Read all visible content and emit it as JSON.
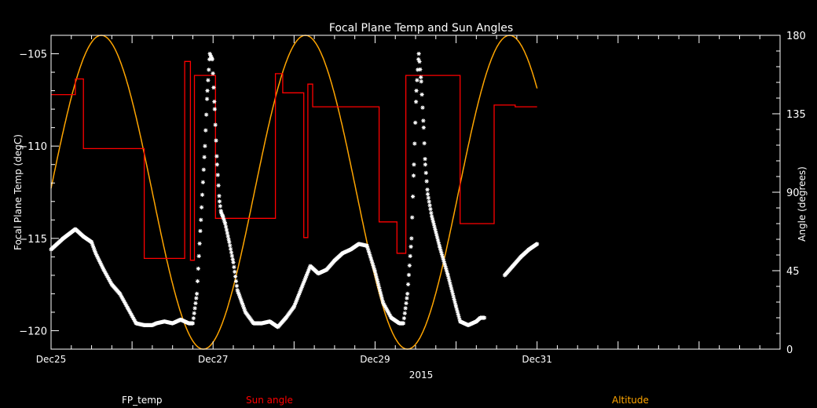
{
  "chart_data": {
    "type": "line",
    "title": "Focal Plane Temp and Sun Angles",
    "xlabel": "2015",
    "ylabel_left": "Focal Plane Temp (degC)",
    "ylabel_right": "Angle (degrees)",
    "x_unit": "days since Dec25 00:00",
    "xlim": [
      0,
      9
    ],
    "ylim_left": [
      -121,
      -104
    ],
    "ylim_right": [
      0,
      180
    ],
    "x_ticks": [
      {
        "value": 0,
        "label": "Dec25"
      },
      {
        "value": 2,
        "label": "Dec27"
      },
      {
        "value": 4,
        "label": "Dec29"
      },
      {
        "value": 6,
        "label": "Dec31"
      }
    ],
    "y_ticks_left": [
      -120,
      -115,
      -110,
      -105
    ],
    "y_tick_labels_left": [
      "−120",
      "−115",
      "−110",
      "−105"
    ],
    "y_ticks_right": [
      0,
      45,
      90,
      135,
      180
    ],
    "legend": [
      {
        "name": "FP_temp",
        "color": "#ffffff"
      },
      {
        "name": "Sun angle",
        "color": "#ff0000"
      },
      {
        "name": "Altitude",
        "color": "#ffa500"
      }
    ],
    "series": [
      {
        "name": "FP_temp",
        "axis": "left",
        "color": "#ffffff",
        "style": "stars",
        "x": [
          0,
          0.15,
          0.3,
          0.4,
          0.5,
          0.55,
          0.65,
          0.75,
          0.85,
          0.95,
          1.05,
          1.15,
          1.25,
          1.3,
          1.4,
          1.5,
          1.6,
          1.7,
          1.75,
          1.8,
          1.85,
          1.9,
          1.93,
          1.96,
          1.99,
          2.02,
          2.05,
          2.08,
          2.1,
          2.12,
          2.15,
          2.2,
          2.25,
          2.3,
          2.4,
          2.5,
          2.6,
          2.7,
          2.8,
          2.9,
          3.0,
          3.1,
          3.2,
          3.3,
          3.4,
          3.5,
          3.6,
          3.7,
          3.8,
          3.9,
          4.0,
          4.1,
          4.2,
          4.3,
          4.35,
          4.4,
          4.45,
          4.48,
          4.51,
          4.54,
          4.57,
          4.6,
          4.62,
          4.65,
          4.7,
          4.8,
          4.9,
          5.0,
          5.05,
          5.15,
          5.2,
          5.25,
          5.3,
          5.35,
          null,
          5.6,
          5.7,
          5.8,
          5.9,
          6.0
        ],
        "y": [
          -115.6,
          -115.0,
          -114.5,
          -114.9,
          -115.2,
          -115.8,
          -116.7,
          -117.5,
          -118.0,
          -118.8,
          -119.6,
          -119.7,
          -119.7,
          -119.6,
          -119.5,
          -119.6,
          -119.4,
          -119.6,
          -119.6,
          -118.0,
          -114.0,
          -110.0,
          -107.0,
          -105.0,
          -105.3,
          -108.0,
          -111.0,
          -113.0,
          -113.6,
          -113.8,
          -114.2,
          -115.2,
          -116.3,
          -117.8,
          -119.0,
          -119.6,
          -119.6,
          -119.5,
          -119.8,
          -119.3,
          -118.7,
          -117.6,
          -116.5,
          -116.9,
          -116.7,
          -116.2,
          -115.8,
          -115.6,
          -115.3,
          -115.4,
          -116.8,
          -118.5,
          -119.3,
          -119.6,
          -119.6,
          -118.0,
          -115.0,
          -111.0,
          -107.0,
          -105.0,
          -106.5,
          -109.0,
          -111.0,
          -112.6,
          -113.8,
          -115.5,
          -117.0,
          -118.7,
          -119.5,
          -119.7,
          -119.6,
          -119.5,
          -119.3,
          -119.3,
          null,
          -117.0,
          -116.5,
          -116.0,
          -115.6,
          -115.3
        ]
      },
      {
        "name": "Sun angle",
        "axis": "right",
        "color": "#ff0000",
        "style": "line",
        "x": [
          0,
          0.3,
          0.3,
          0.4,
          0.4,
          0.7,
          0.7,
          1.15,
          1.15,
          1.65,
          1.65,
          1.72,
          1.72,
          1.77,
          1.77,
          1.85,
          1.85,
          2.03,
          2.03,
          2.43,
          2.43,
          2.77,
          2.77,
          2.86,
          2.86,
          2.93,
          2.93,
          3.12,
          3.12,
          3.17,
          3.17,
          3.23,
          3.23,
          3.6,
          3.6,
          3.76,
          3.76,
          4.05,
          4.05,
          4.05,
          4.05,
          4.27,
          4.27,
          4.38,
          4.38,
          4.62,
          4.62,
          5.05,
          5.05,
          5.44,
          5.44,
          5.47,
          5.47,
          5.73,
          5.73,
          6.0
        ],
        "y": [
          146,
          146,
          155,
          155,
          115,
          115,
          115,
          115,
          52,
          52,
          165,
          165,
          51,
          51,
          157,
          157,
          157,
          157,
          75,
          75,
          75,
          75,
          158,
          158,
          147,
          147,
          147,
          147,
          64,
          64,
          152,
          152,
          139,
          139,
          139,
          139,
          139,
          139,
          125,
          125,
          73,
          73,
          55,
          55,
          157,
          157,
          157,
          157,
          72,
          72,
          72,
          72,
          140,
          140,
          139,
          139
        ]
      },
      {
        "name": "Altitude",
        "axis": "right",
        "color": "#ffa500",
        "style": "line",
        "function": "sine",
        "min_value": 0,
        "max_value": 180,
        "peaks_x": [
          0.62,
          3.12,
          5.65
        ],
        "troughs_x": [
          1.88,
          4.38
        ]
      }
    ]
  }
}
